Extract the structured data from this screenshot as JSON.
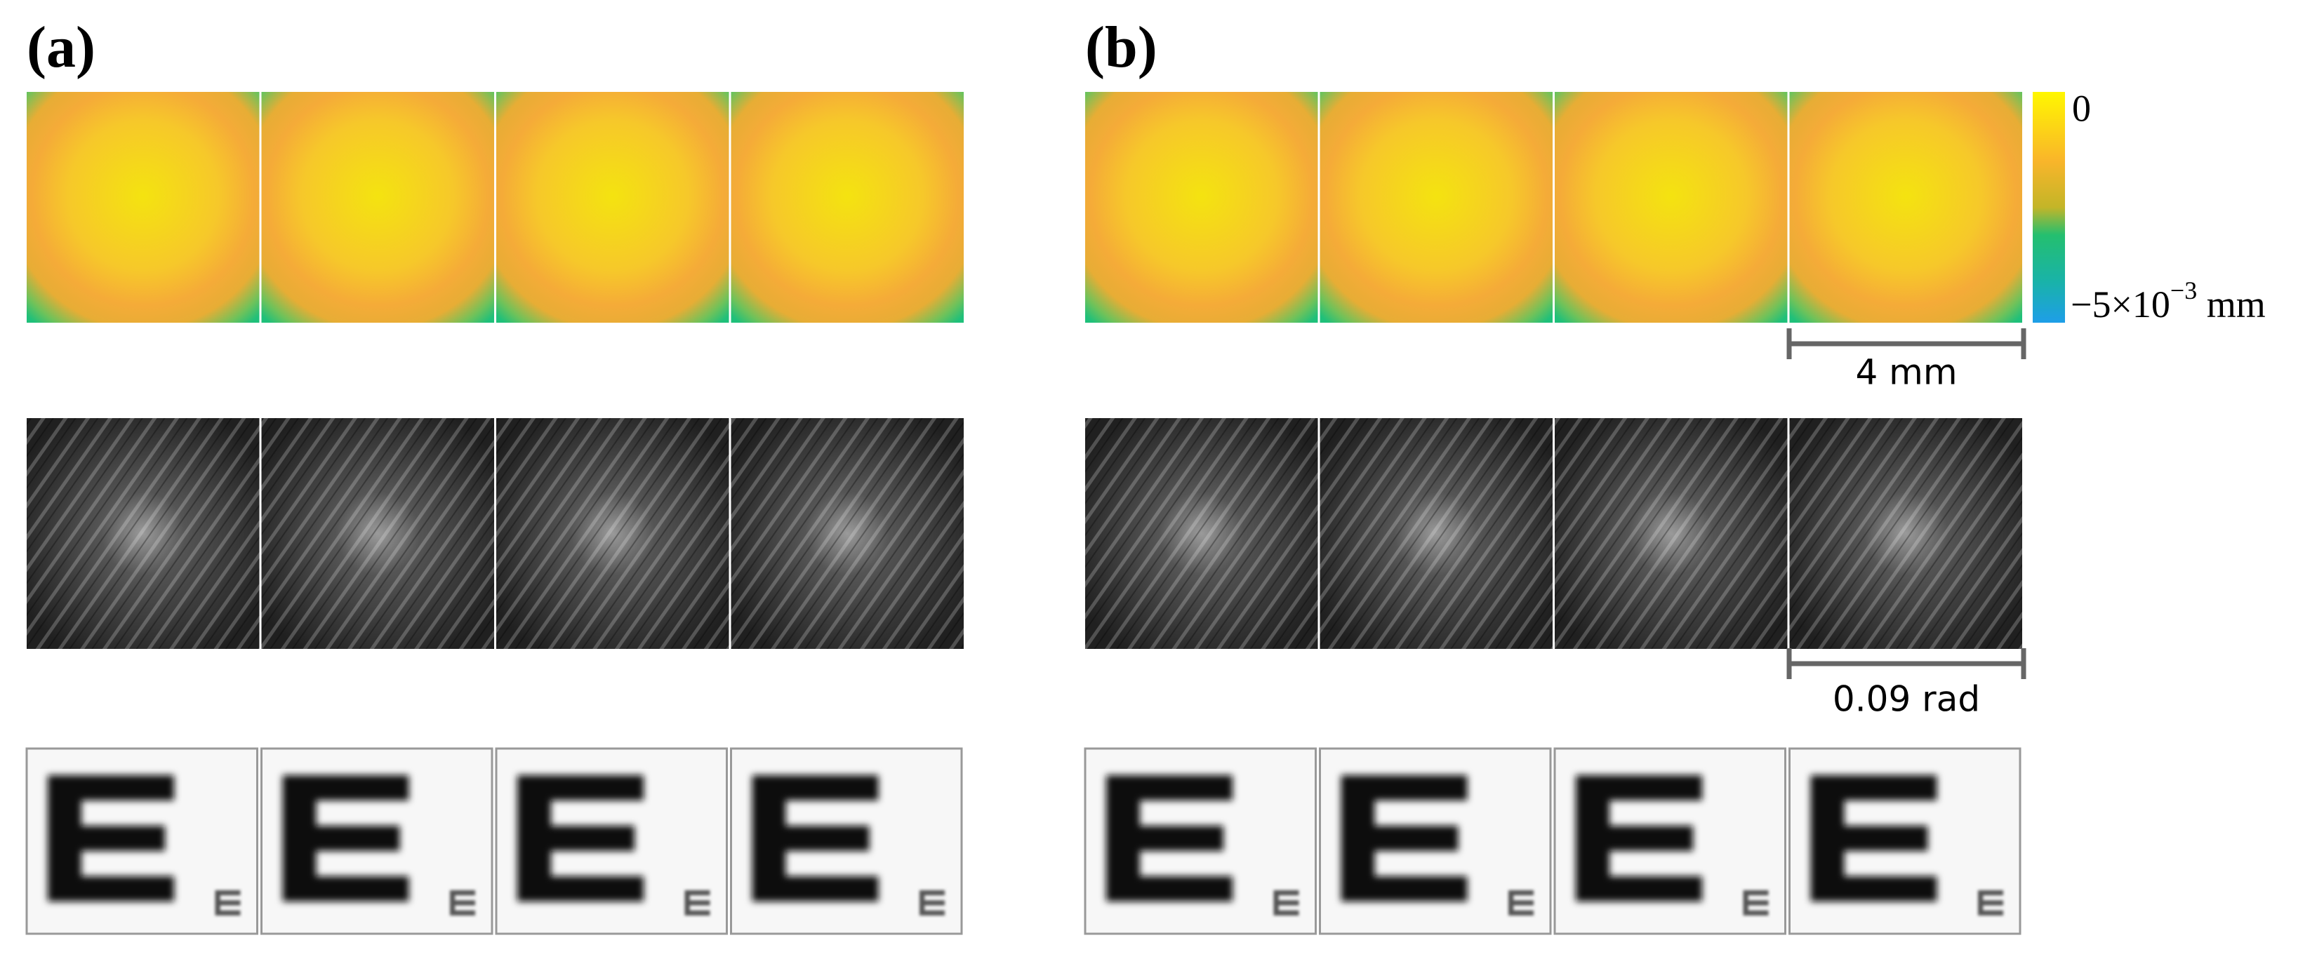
{
  "panels": [
    {
      "label": "(a)"
    },
    {
      "label": "(b)"
    }
  ],
  "colorbar": {
    "max_label": "0",
    "min_label": {
      "base": "−5×10",
      "exponent": "−3",
      "unit": " mm"
    }
  },
  "scale_bars": [
    "4 mm",
    "0.09 rad"
  ]
}
